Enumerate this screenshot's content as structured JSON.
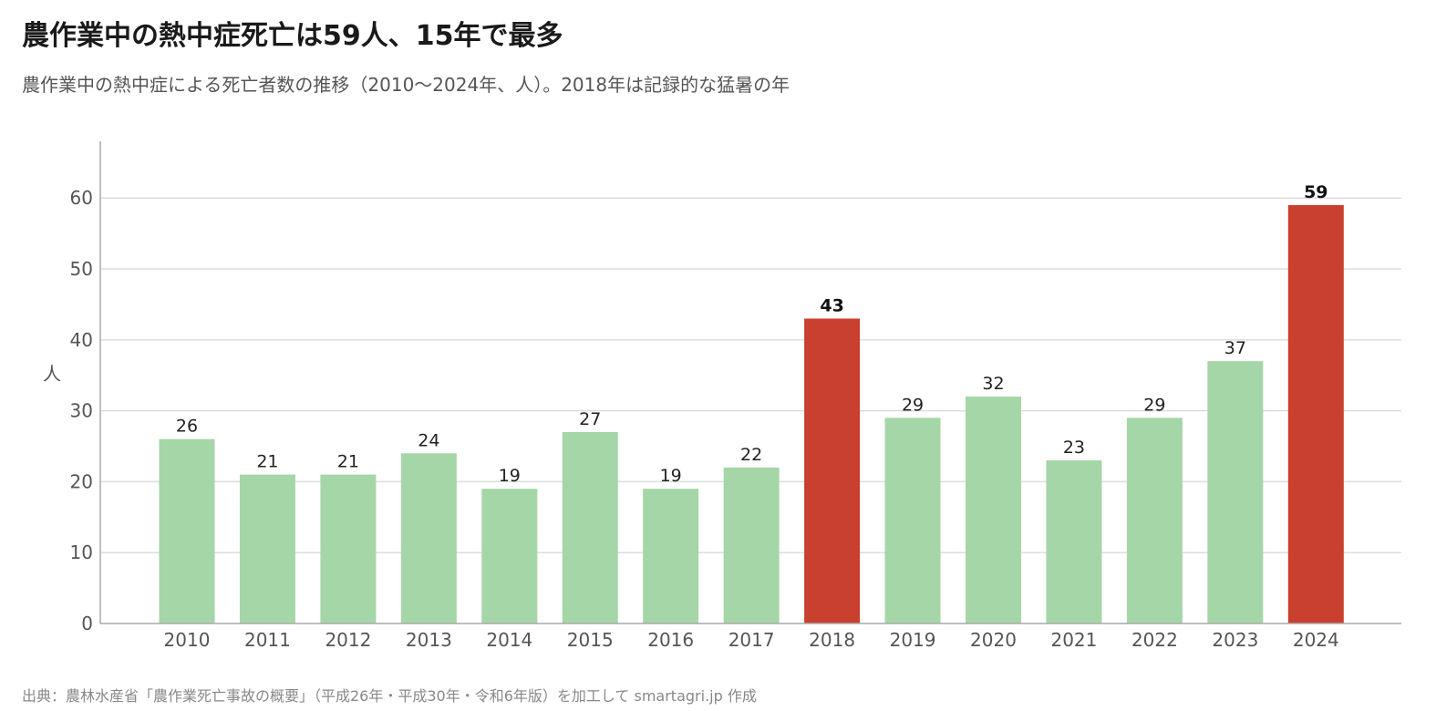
{
  "header": {
    "title": "農作業中の熱中症死亡は59人、15年で最多",
    "subtitle": "農作業中の熱中症による死亡者数の推移（2010〜2024年、人）。2018年は記録的な猛暑の年"
  },
  "footer": {
    "source": "出典：農林水産省「農作業死亡事故の概要」（平成26年・平成30年・令和6年版）を加工して smartagri.jp 作成"
  },
  "colors": {
    "bar": "#a5d6a7",
    "highlight": "#c9402f",
    "grid": "#dddddd",
    "axis": "#aaaaaa"
  },
  "chart_data": {
    "type": "bar",
    "title": "農作業中の熱中症死亡は59人、15年で最多",
    "ylabel": "人",
    "xlabel": "",
    "categories": [
      "2010",
      "2011",
      "2012",
      "2013",
      "2014",
      "2015",
      "2016",
      "2017",
      "2018",
      "2019",
      "2020",
      "2021",
      "2022",
      "2023",
      "2024"
    ],
    "values": [
      26,
      21,
      21,
      24,
      19,
      27,
      19,
      22,
      43,
      29,
      32,
      23,
      29,
      37,
      59
    ],
    "highlight": [
      "2018",
      "2024"
    ],
    "ylim": [
      0,
      68
    ],
    "yticks": [
      0,
      10,
      20,
      30,
      40,
      50,
      60
    ],
    "grid": true,
    "data_labels": true
  }
}
